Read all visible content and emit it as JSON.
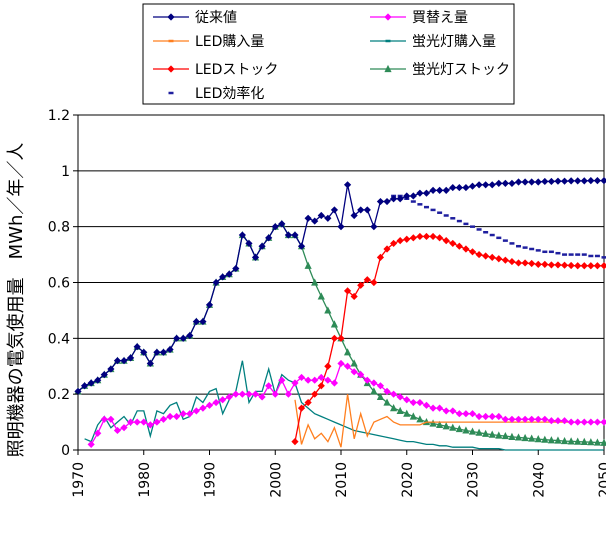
{
  "chart_data": {
    "type": "line",
    "title": "",
    "xlabel": "",
    "ylabel": "照明機器の電気使用量　MWh／年／人",
    "xlim": [
      1970,
      2050
    ],
    "ylim": [
      0,
      1.2
    ],
    "x_ticks": [
      "1970",
      "1980",
      "1990",
      "2000",
      "2010",
      "2020",
      "2030",
      "2040",
      "2050"
    ],
    "y_ticks": [
      "0",
      "0.2",
      "0.4",
      "0.6",
      "0.8",
      "1",
      "1.2"
    ],
    "grid": "horizontal",
    "legend": {
      "placement": "top",
      "columns": 2
    },
    "series": [
      {
        "name": "従来値",
        "color": "#00007F",
        "marker": "diamond",
        "line": true,
        "x": [
          1970,
          1971,
          1972,
          1973,
          1974,
          1975,
          1976,
          1977,
          1978,
          1979,
          1980,
          1981,
          1982,
          1983,
          1984,
          1985,
          1986,
          1987,
          1988,
          1989,
          1990,
          1991,
          1992,
          1993,
          1994,
          1995,
          1996,
          1997,
          1998,
          1999,
          2000,
          2001,
          2002,
          2003,
          2004,
          2005,
          2006,
          2007,
          2008,
          2009,
          2010,
          2011,
          2012,
          2013,
          2014,
          2015,
          2016,
          2017,
          2018,
          2019,
          2020,
          2021,
          2022,
          2023,
          2024,
          2025,
          2026,
          2027,
          2028,
          2029,
          2030,
          2031,
          2032,
          2033,
          2034,
          2035,
          2036,
          2037,
          2038,
          2039,
          2040,
          2041,
          2042,
          2043,
          2044,
          2045,
          2046,
          2047,
          2048,
          2049,
          2050
        ],
        "y": [
          0.21,
          0.23,
          0.24,
          0.25,
          0.27,
          0.29,
          0.32,
          0.32,
          0.33,
          0.37,
          0.35,
          0.31,
          0.35,
          0.35,
          0.36,
          0.4,
          0.4,
          0.41,
          0.46,
          0.46,
          0.52,
          0.6,
          0.62,
          0.63,
          0.65,
          0.77,
          0.74,
          0.69,
          0.73,
          0.76,
          0.8,
          0.81,
          0.77,
          0.77,
          0.73,
          0.83,
          0.82,
          0.84,
          0.83,
          0.86,
          0.8,
          0.95,
          0.84,
          0.86,
          0.86,
          0.8,
          0.89,
          0.89,
          0.9,
          0.9,
          0.91,
          0.91,
          0.92,
          0.92,
          0.93,
          0.93,
          0.93,
          0.94,
          0.94,
          0.94,
          0.945,
          0.95,
          0.95,
          0.95,
          0.955,
          0.955,
          0.955,
          0.96,
          0.96,
          0.96,
          0.96,
          0.962,
          0.962,
          0.963,
          0.963,
          0.964,
          0.964,
          0.964,
          0.965,
          0.965,
          0.965
        ]
      },
      {
        "name": "買替え量",
        "color": "#FF00FF",
        "marker": "diamond",
        "line": true,
        "x": [
          1972,
          1973,
          1974,
          1975,
          1976,
          1977,
          1978,
          1979,
          1980,
          1981,
          1982,
          1983,
          1984,
          1985,
          1986,
          1987,
          1988,
          1989,
          1990,
          1991,
          1992,
          1993,
          1994,
          1995,
          1996,
          1997,
          1998,
          1999,
          2000,
          2001,
          2002,
          2003,
          2004,
          2005,
          2006,
          2007,
          2008,
          2009,
          2010,
          2011,
          2012,
          2013,
          2014,
          2015,
          2016,
          2017,
          2018,
          2019,
          2020,
          2021,
          2022,
          2023,
          2024,
          2025,
          2026,
          2027,
          2028,
          2029,
          2030,
          2031,
          2032,
          2033,
          2034,
          2035,
          2036,
          2037,
          2038,
          2039,
          2040,
          2041,
          2042,
          2043,
          2044,
          2045,
          2046,
          2047,
          2048,
          2049,
          2050
        ],
        "y": [
          0.02,
          0.06,
          0.11,
          0.11,
          0.07,
          0.08,
          0.1,
          0.1,
          0.1,
          0.09,
          0.1,
          0.11,
          0.12,
          0.12,
          0.13,
          0.13,
          0.14,
          0.15,
          0.16,
          0.17,
          0.18,
          0.19,
          0.2,
          0.2,
          0.2,
          0.2,
          0.19,
          0.23,
          0.2,
          0.25,
          0.2,
          0.24,
          0.26,
          0.25,
          0.25,
          0.26,
          0.25,
          0.24,
          0.31,
          0.3,
          0.28,
          0.27,
          0.25,
          0.24,
          0.23,
          0.21,
          0.2,
          0.19,
          0.18,
          0.17,
          0.17,
          0.16,
          0.15,
          0.15,
          0.14,
          0.14,
          0.13,
          0.13,
          0.13,
          0.12,
          0.12,
          0.12,
          0.12,
          0.11,
          0.11,
          0.11,
          0.11,
          0.11,
          0.11,
          0.11,
          0.105,
          0.105,
          0.105,
          0.1,
          0.1,
          0.1,
          0.1,
          0.1,
          0.1
        ]
      },
      {
        "name": "LED購入量",
        "color": "#FF7F1F",
        "marker": "dash",
        "line": true,
        "x": [
          2003,
          2004,
          2005,
          2006,
          2007,
          2008,
          2009,
          2010,
          2011,
          2012,
          2013,
          2014,
          2015,
          2016,
          2017,
          2018,
          2019,
          2020,
          2021,
          2022,
          2023,
          2024,
          2025,
          2026,
          2027,
          2028,
          2029,
          2030,
          2031,
          2032,
          2033,
          2034,
          2035,
          2036,
          2037,
          2038,
          2039,
          2040,
          2041,
          2042,
          2043,
          2044,
          2045,
          2046,
          2047,
          2048,
          2049,
          2050
        ],
        "y": [
          0.18,
          0.02,
          0.09,
          0.04,
          0.06,
          0.03,
          0.08,
          0.01,
          0.2,
          0.04,
          0.13,
          0.05,
          0.1,
          0.11,
          0.12,
          0.1,
          0.09,
          0.09,
          0.09,
          0.09,
          0.1,
          0.1,
          0.1,
          0.1,
          0.1,
          0.1,
          0.1,
          0.1,
          0.1,
          0.1,
          0.1,
          0.1,
          0.1,
          0.1,
          0.1,
          0.1,
          0.1,
          0.1,
          0.1,
          0.1,
          0.1,
          0.1,
          0.1,
          0.1,
          0.1,
          0.1,
          0.1,
          0.1
        ]
      },
      {
        "name": "蛍光灯購入量",
        "color": "#007F7F",
        "marker": "dash",
        "line": true,
        "x": [
          1971,
          1972,
          1973,
          1974,
          1975,
          1976,
          1977,
          1978,
          1979,
          1980,
          1981,
          1982,
          1983,
          1984,
          1985,
          1986,
          1987,
          1988,
          1989,
          1990,
          1991,
          1992,
          1993,
          1994,
          1995,
          1996,
          1997,
          1998,
          1999,
          2000,
          2001,
          2002,
          2003,
          2004,
          2005,
          2006,
          2007,
          2008,
          2009,
          2010,
          2011,
          2012,
          2013,
          2014,
          2015,
          2016,
          2017,
          2018,
          2019,
          2020,
          2021,
          2022,
          2023,
          2024,
          2025,
          2026,
          2027,
          2028,
          2029,
          2030,
          2031,
          2032,
          2033,
          2034,
          2035,
          2036,
          2037,
          2038,
          2039,
          2040,
          2041,
          2042,
          2043,
          2044,
          2045,
          2046,
          2047,
          2048,
          2049,
          2050
        ],
        "y": [
          0.04,
          0.03,
          0.09,
          0.12,
          0.08,
          0.1,
          0.12,
          0.09,
          0.14,
          0.14,
          0.05,
          0.14,
          0.13,
          0.16,
          0.17,
          0.11,
          0.12,
          0.19,
          0.17,
          0.21,
          0.22,
          0.13,
          0.18,
          0.21,
          0.32,
          0.17,
          0.21,
          0.21,
          0.29,
          0.2,
          0.27,
          0.25,
          0.24,
          0.17,
          0.15,
          0.13,
          0.12,
          0.11,
          0.1,
          0.09,
          0.08,
          0.07,
          0.065,
          0.06,
          0.055,
          0.05,
          0.045,
          0.04,
          0.035,
          0.03,
          0.03,
          0.025,
          0.02,
          0.02,
          0.015,
          0.015,
          0.01,
          0.01,
          0.01,
          0.01,
          0.005,
          0.005,
          0.005,
          0.005,
          0,
          0,
          0,
          0,
          0,
          0,
          0,
          0,
          0,
          0,
          0,
          0,
          0,
          0,
          0,
          0
        ]
      },
      {
        "name": "LEDストック",
        "color": "#FF0000",
        "marker": "diamond",
        "line": true,
        "x": [
          2003,
          2004,
          2005,
          2006,
          2007,
          2008,
          2009,
          2010,
          2011,
          2012,
          2013,
          2014,
          2015,
          2016,
          2017,
          2018,
          2019,
          2020,
          2021,
          2022,
          2023,
          2024,
          2025,
          2026,
          2027,
          2028,
          2029,
          2030,
          2031,
          2032,
          2033,
          2034,
          2035,
          2036,
          2037,
          2038,
          2039,
          2040,
          2041,
          2042,
          2043,
          2044,
          2045,
          2046,
          2047,
          2048,
          2049,
          2050
        ],
        "y": [
          0.03,
          0.15,
          0.17,
          0.2,
          0.23,
          0.3,
          0.4,
          0.4,
          0.57,
          0.55,
          0.59,
          0.61,
          0.6,
          0.69,
          0.72,
          0.74,
          0.75,
          0.755,
          0.76,
          0.765,
          0.765,
          0.765,
          0.76,
          0.75,
          0.74,
          0.73,
          0.72,
          0.71,
          0.7,
          0.695,
          0.69,
          0.685,
          0.68,
          0.675,
          0.67,
          0.67,
          0.668,
          0.665,
          0.665,
          0.663,
          0.663,
          0.662,
          0.661,
          0.66,
          0.66,
          0.66,
          0.66,
          0.66
        ]
      },
      {
        "name": "蛍光灯ストック",
        "color": "#2E8B57",
        "marker": "triangle",
        "line": true,
        "x": [
          1970,
          1971,
          1972,
          1973,
          1974,
          1975,
          1976,
          1977,
          1978,
          1979,
          1980,
          1981,
          1982,
          1983,
          1984,
          1985,
          1986,
          1987,
          1988,
          1989,
          1990,
          1991,
          1992,
          1993,
          1994,
          1995,
          1996,
          1997,
          1998,
          1999,
          2000,
          2001,
          2002,
          2003,
          2004,
          2005,
          2006,
          2007,
          2008,
          2009,
          2010,
          2011,
          2012,
          2013,
          2014,
          2015,
          2016,
          2017,
          2018,
          2019,
          2020,
          2021,
          2022,
          2023,
          2024,
          2025,
          2026,
          2027,
          2028,
          2029,
          2030,
          2031,
          2032,
          2033,
          2034,
          2035,
          2036,
          2037,
          2038,
          2039,
          2040,
          2041,
          2042,
          2043,
          2044,
          2045,
          2046,
          2047,
          2048,
          2049,
          2050
        ],
        "y": [
          0.21,
          0.23,
          0.24,
          0.25,
          0.27,
          0.29,
          0.32,
          0.32,
          0.33,
          0.37,
          0.35,
          0.31,
          0.35,
          0.35,
          0.36,
          0.4,
          0.4,
          0.41,
          0.46,
          0.46,
          0.52,
          0.6,
          0.62,
          0.63,
          0.65,
          0.77,
          0.74,
          0.69,
          0.73,
          0.76,
          0.8,
          0.81,
          0.77,
          0.77,
          0.73,
          0.66,
          0.6,
          0.55,
          0.5,
          0.45,
          0.4,
          0.35,
          0.31,
          0.27,
          0.24,
          0.21,
          0.19,
          0.17,
          0.15,
          0.14,
          0.13,
          0.12,
          0.11,
          0.1,
          0.095,
          0.09,
          0.085,
          0.08,
          0.075,
          0.07,
          0.066,
          0.062,
          0.058,
          0.055,
          0.052,
          0.05,
          0.047,
          0.045,
          0.043,
          0.041,
          0.039,
          0.037,
          0.035,
          0.034,
          0.032,
          0.031,
          0.03,
          0.029,
          0.028,
          0.027,
          0.026
        ]
      },
      {
        "name": "LED効率化",
        "color": "#1F1F9F",
        "marker": "dash",
        "line": false,
        "x": [
          2018,
          2019,
          2020,
          2021,
          2022,
          2023,
          2024,
          2025,
          2026,
          2027,
          2028,
          2029,
          2030,
          2031,
          2032,
          2033,
          2034,
          2035,
          2036,
          2037,
          2038,
          2039,
          2040,
          2041,
          2042,
          2043,
          2044,
          2045,
          2046,
          2047,
          2048,
          2049,
          2050
        ],
        "y": [
          0.91,
          0.91,
          0.9,
          0.89,
          0.88,
          0.87,
          0.86,
          0.85,
          0.84,
          0.83,
          0.82,
          0.81,
          0.8,
          0.79,
          0.78,
          0.77,
          0.76,
          0.75,
          0.74,
          0.73,
          0.725,
          0.72,
          0.715,
          0.71,
          0.71,
          0.705,
          0.7,
          0.7,
          0.7,
          0.7,
          0.695,
          0.695,
          0.69
        ]
      }
    ]
  }
}
